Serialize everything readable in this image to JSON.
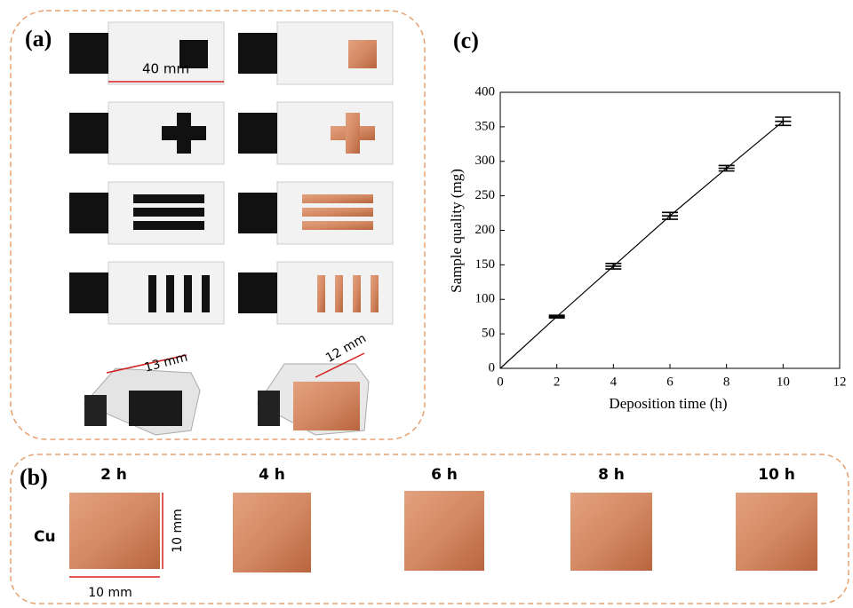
{
  "panel_a": {
    "label": "(a)",
    "dimension_plate": "40 mm",
    "dimension_box_left": "13 mm",
    "dimension_box_right": "12 mm"
  },
  "panel_b": {
    "label": "(b)",
    "material": "Cu",
    "times": [
      "2 h",
      "4 h",
      "6 h",
      "8 h",
      "10 h"
    ],
    "height": "10 mm",
    "width": "10 mm"
  },
  "chart_data": {
    "type": "line",
    "panel_label": "(c)",
    "x_label": "Deposition time (h)",
    "y_label": "Sample quality (mg)",
    "x": [
      0,
      2,
      4,
      6,
      8,
      10
    ],
    "series": [
      {
        "color": "#000000",
        "values": [
          0,
          75,
          148,
          221,
          290,
          358
        ],
        "errors": [
          0,
          2,
          4,
          5,
          4,
          6
        ]
      }
    ],
    "xlim": [
      0,
      12
    ],
    "xticks": [
      0,
      2,
      4,
      6,
      8,
      10,
      12
    ],
    "ylim": [
      0,
      400
    ],
    "yticks": [
      0,
      50,
      100,
      150,
      200,
      250,
      300,
      350,
      400
    ]
  }
}
